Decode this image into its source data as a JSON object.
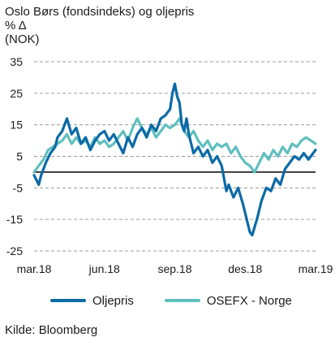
{
  "chart_data": {
    "type": "line",
    "title": "Oslo Børs (fondsindeks) og oljepris",
    "ylabel_lines": [
      "% Δ",
      "(NOK)"
    ],
    "xlabel": "",
    "ylim": [
      -25,
      35
    ],
    "yticks": [
      35,
      25,
      15,
      5,
      -5,
      -15,
      -25
    ],
    "xlim": [
      0,
      12
    ],
    "xticks": [
      {
        "x": 0,
        "label": "mar.18"
      },
      {
        "x": 3,
        "label": "jun.18"
      },
      {
        "x": 6,
        "label": "sep.18"
      },
      {
        "x": 9,
        "label": "des.18"
      },
      {
        "x": 12,
        "label": "mar.19"
      }
    ],
    "zero_line": 0,
    "grid": "horizontal-dashed",
    "legend_position": "bottom",
    "series": [
      {
        "name": "Oljepris",
        "color": "#0b6aa6",
        "x": [
          0,
          0.2,
          0.3,
          0.5,
          0.7,
          0.9,
          1.0,
          1.2,
          1.4,
          1.6,
          1.8,
          2.0,
          2.2,
          2.4,
          2.6,
          2.8,
          3.0,
          3.2,
          3.4,
          3.6,
          3.8,
          4.0,
          4.2,
          4.4,
          4.6,
          4.8,
          5.0,
          5.2,
          5.4,
          5.6,
          5.8,
          5.9,
          6.0,
          6.1,
          6.2,
          6.3,
          6.4,
          6.5,
          6.6,
          6.7,
          6.8,
          7.0,
          7.2,
          7.4,
          7.6,
          7.8,
          8.0,
          8.2,
          8.3,
          8.5,
          8.7,
          8.9,
          9.0,
          9.2,
          9.3,
          9.5,
          9.7,
          9.9,
          10.1,
          10.3,
          10.5,
          10.7,
          10.9,
          11.1,
          11.3,
          11.5,
          11.7,
          11.9,
          12.0
        ],
        "y": [
          -1,
          -4,
          -1,
          3,
          6,
          8,
          11,
          13,
          17,
          12,
          14,
          9,
          11,
          7,
          10,
          12,
          13,
          10,
          12,
          9,
          6,
          11,
          8,
          12,
          14,
          11,
          15,
          13,
          17,
          18,
          20,
          25,
          28,
          24,
          22,
          15,
          13,
          17,
          12,
          9,
          6,
          8,
          5,
          7,
          3,
          5,
          2,
          -6,
          -4,
          -8,
          -5,
          -10,
          -13,
          -19,
          -20,
          -15,
          -9,
          -5,
          -6,
          -2,
          -4,
          1,
          3,
          5,
          4,
          6,
          4,
          6,
          7
        ]
      },
      {
        "name": "OSEFX - Norge",
        "color": "#5fbfbe",
        "x": [
          0,
          0.2,
          0.4,
          0.6,
          0.8,
          1.0,
          1.2,
          1.4,
          1.6,
          1.8,
          2.0,
          2.2,
          2.4,
          2.6,
          2.8,
          3.0,
          3.2,
          3.4,
          3.6,
          3.8,
          4.0,
          4.2,
          4.4,
          4.6,
          4.8,
          5.0,
          5.2,
          5.4,
          5.6,
          5.8,
          6.0,
          6.2,
          6.4,
          6.6,
          6.8,
          7.0,
          7.2,
          7.4,
          7.6,
          7.8,
          8.0,
          8.2,
          8.4,
          8.6,
          8.8,
          9.0,
          9.2,
          9.4,
          9.6,
          9.8,
          10.0,
          10.2,
          10.4,
          10.6,
          10.8,
          11.0,
          11.2,
          11.4,
          11.6,
          11.8,
          12.0
        ],
        "y": [
          0,
          2,
          4,
          7,
          8,
          9,
          10,
          12,
          9,
          11,
          9,
          10,
          8,
          11,
          9,
          10,
          8,
          9,
          11,
          13,
          10,
          14,
          17,
          14,
          12,
          14,
          11,
          13,
          15,
          14,
          15,
          17,
          13,
          11,
          13,
          10,
          8,
          10,
          7,
          9,
          8,
          9,
          6,
          8,
          5,
          3,
          2,
          0,
          3,
          6,
          4,
          7,
          5,
          8,
          6,
          9,
          8,
          10,
          11,
          10,
          9
        ]
      }
    ]
  },
  "legend": [
    {
      "label": "Oljepris",
      "color": "#0b6aa6"
    },
    {
      "label": "OSEFX - Norge",
      "color": "#5fbfbe"
    }
  ],
  "source": "Kilde: Bloomberg"
}
